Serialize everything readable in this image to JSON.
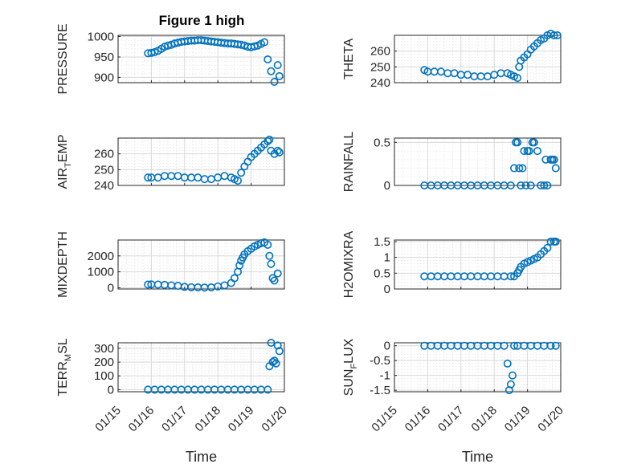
{
  "figure": {
    "title": "Figure 1 high",
    "marker_color": "#0072BD",
    "x_tick_labels": [
      "01/15",
      "01/16",
      "01/17",
      "01/18",
      "01/19",
      "01/20"
    ],
    "xlabel": "Time"
  },
  "chart_data": [
    {
      "type": "scatter",
      "title": "Figure 1 high",
      "ylabel": "PRESSURE",
      "xlim": [
        "01/15",
        "01/20"
      ],
      "ylim": [
        887,
        1003
      ],
      "yticks": [
        900,
        950,
        1000
      ],
      "ytick_labels": [
        "900",
        "950",
        "1000"
      ],
      "grid": true,
      "x_day": [
        15.9,
        16.0,
        16.1,
        16.2,
        16.3,
        16.4,
        16.5,
        16.6,
        16.7,
        16.8,
        16.9,
        17.0,
        17.1,
        17.2,
        17.3,
        17.4,
        17.5,
        17.6,
        17.7,
        17.8,
        17.9,
        18.0,
        18.1,
        18.2,
        18.3,
        18.4,
        18.5,
        18.6,
        18.7,
        18.8,
        18.9,
        19.0,
        19.1,
        19.2,
        19.3,
        19.4,
        19.5,
        19.6,
        19.7,
        19.8,
        19.85
      ],
      "y": [
        959,
        960,
        962,
        965,
        970,
        975,
        978,
        980,
        983,
        985,
        987,
        988,
        989,
        990,
        990,
        991,
        991,
        990,
        989,
        988,
        987,
        986,
        985,
        984,
        983,
        983,
        982,
        981,
        980,
        978,
        975,
        974,
        976,
        978,
        982,
        986,
        944,
        915,
        889,
        930,
        903
      ]
    },
    {
      "type": "scatter",
      "ylabel": "THETA",
      "xlim": [
        "01/15",
        "01/20"
      ],
      "ylim": [
        240,
        270
      ],
      "yticks": [
        240,
        250,
        260
      ],
      "ytick_labels": [
        "240",
        "250",
        "260"
      ],
      "grid": true,
      "x_day": [
        15.9,
        16.0,
        16.2,
        16.4,
        16.6,
        16.8,
        17.0,
        17.2,
        17.4,
        17.6,
        17.8,
        18.0,
        18.2,
        18.4,
        18.5,
        18.6,
        18.7,
        18.75,
        18.8,
        18.9,
        19.0,
        19.1,
        19.2,
        19.3,
        19.4,
        19.5,
        19.6,
        19.7,
        19.8,
        19.9
      ],
      "y": [
        248,
        247,
        247,
        247,
        246,
        246,
        245,
        245,
        244,
        244,
        244,
        245,
        246,
        246,
        245,
        244,
        243,
        250,
        254,
        256,
        258,
        261,
        263,
        265,
        267,
        268,
        270,
        271,
        270,
        270
      ]
    },
    {
      "type": "scatter",
      "ylabel": "AIR_TEMP",
      "xlim": [
        "01/15",
        "01/20"
      ],
      "ylim": [
        240,
        270
      ],
      "yticks": [
        240,
        250,
        260
      ],
      "ytick_labels": [
        "240",
        "250",
        "260"
      ],
      "grid": true,
      "x_day": [
        15.9,
        16.0,
        16.2,
        16.4,
        16.6,
        16.8,
        17.0,
        17.2,
        17.4,
        17.6,
        17.8,
        18.0,
        18.2,
        18.4,
        18.5,
        18.6,
        18.7,
        18.8,
        18.9,
        19.0,
        19.1,
        19.2,
        19.3,
        19.4,
        19.5,
        19.55,
        19.6,
        19.7,
        19.8,
        19.85
      ],
      "y": [
        245,
        245,
        245,
        246,
        246,
        246,
        245,
        245,
        245,
        244,
        244,
        245,
        246,
        245,
        244,
        243,
        248,
        252,
        255,
        258,
        260,
        262,
        264,
        266,
        268,
        269,
        262,
        260,
        262,
        261
      ]
    },
    {
      "type": "scatter",
      "ylabel": "RAINFALL",
      "xlim": [
        "01/15",
        "01/20"
      ],
      "ylim": [
        0,
        0.55
      ],
      "yticks": [
        0,
        0.5
      ],
      "ytick_labels": [
        "0",
        "0.5"
      ],
      "grid": true,
      "x_day": [
        15.9,
        16.1,
        16.3,
        16.5,
        16.7,
        16.9,
        17.1,
        17.3,
        17.5,
        17.7,
        17.9,
        18.1,
        18.3,
        18.5,
        18.6,
        18.65,
        18.7,
        18.75,
        18.8,
        18.85,
        18.9,
        18.95,
        19.0,
        19.05,
        19.1,
        19.15,
        19.2,
        19.3,
        19.4,
        19.5,
        19.55,
        19.6,
        19.7,
        19.75,
        19.8,
        19.85
      ],
      "y": [
        0,
        0,
        0,
        0,
        0,
        0,
        0,
        0,
        0,
        0,
        0,
        0,
        0,
        0,
        0.2,
        0.5,
        0.5,
        0.2,
        0,
        0.2,
        0.4,
        0,
        0.4,
        0.4,
        0,
        0.5,
        0.5,
        0.4,
        0,
        0,
        0.3,
        0,
        0.3,
        0.3,
        0.3,
        0.2
      ]
    },
    {
      "type": "scatter",
      "ylabel": "MIXDEPTH",
      "xlim": [
        "01/15",
        "01/20"
      ],
      "ylim": [
        -80,
        3000
      ],
      "yticks": [
        0,
        1000,
        2000
      ],
      "ytick_labels": [
        "0",
        "1000",
        "2000"
      ],
      "grid": true,
      "x_day": [
        15.9,
        16.0,
        16.2,
        16.4,
        16.6,
        16.8,
        17.0,
        17.2,
        17.4,
        17.6,
        17.8,
        18.0,
        18.2,
        18.4,
        18.5,
        18.6,
        18.65,
        18.7,
        18.75,
        18.8,
        18.9,
        19.0,
        19.1,
        19.2,
        19.3,
        19.4,
        19.5,
        19.55,
        19.6,
        19.65,
        19.7,
        19.8
      ],
      "y": [
        200,
        210,
        200,
        180,
        150,
        120,
        50,
        30,
        20,
        10,
        20,
        80,
        150,
        300,
        600,
        1000,
        1400,
        1700,
        1900,
        2100,
        2300,
        2450,
        2600,
        2700,
        2800,
        2850,
        2700,
        2000,
        1500,
        600,
        450,
        900
      ]
    },
    {
      "type": "scatter",
      "ylabel": "H2OMIXRA",
      "xlim": [
        "01/15",
        "01/20"
      ],
      "ylim": [
        0,
        1.55
      ],
      "yticks": [
        0,
        0.5,
        1,
        1.5
      ],
      "ytick_labels": [
        "0",
        "0.5",
        "1",
        "1.5"
      ],
      "grid": true,
      "x_day": [
        15.9,
        16.1,
        16.3,
        16.5,
        16.7,
        16.9,
        17.1,
        17.3,
        17.5,
        17.7,
        17.9,
        18.1,
        18.3,
        18.5,
        18.6,
        18.7,
        18.75,
        18.8,
        18.9,
        19.0,
        19.1,
        19.2,
        19.3,
        19.4,
        19.5,
        19.6,
        19.7,
        19.8,
        19.85
      ],
      "y": [
        0.4,
        0.4,
        0.4,
        0.4,
        0.4,
        0.4,
        0.4,
        0.4,
        0.4,
        0.4,
        0.4,
        0.4,
        0.4,
        0.4,
        0.4,
        0.5,
        0.6,
        0.7,
        0.8,
        0.85,
        0.9,
        0.95,
        1.0,
        1.1,
        1.2,
        1.3,
        1.5,
        1.5,
        1.5
      ]
    },
    {
      "type": "scatter",
      "ylabel": "TERR_MSL",
      "xlim": [
        "01/15",
        "01/20"
      ],
      "ylim": [
        -15,
        340
      ],
      "yticks": [
        0,
        100,
        200,
        300
      ],
      "ytick_labels": [
        "0",
        "100",
        "200",
        "300"
      ],
      "grid": true,
      "x_day": [
        15.9,
        16.1,
        16.3,
        16.5,
        16.7,
        16.9,
        17.1,
        17.3,
        17.5,
        17.7,
        17.9,
        18.1,
        18.3,
        18.5,
        18.7,
        18.9,
        19.1,
        19.3,
        19.5,
        19.55,
        19.6,
        19.65,
        19.7,
        19.75,
        19.8,
        19.85
      ],
      "y": [
        0,
        0,
        0,
        0,
        0,
        0,
        0,
        0,
        0,
        0,
        0,
        0,
        0,
        0,
        0,
        0,
        0,
        0,
        0,
        170,
        340,
        200,
        210,
        190,
        320,
        280
      ]
    },
    {
      "type": "scatter",
      "ylabel": "SUN_FLUX",
      "xlim": [
        "01/15",
        "01/20"
      ],
      "ylim": [
        -1.55,
        0.1
      ],
      "yticks": [
        -1.5,
        -1,
        -0.5,
        0
      ],
      "ytick_labels": [
        "-1.5",
        "-1",
        "-0.5",
        "0"
      ],
      "grid": true,
      "x_day": [
        15.9,
        16.1,
        16.3,
        16.5,
        16.7,
        16.9,
        17.1,
        17.3,
        17.5,
        17.7,
        17.9,
        18.1,
        18.3,
        18.4,
        18.45,
        18.5,
        18.55,
        18.6,
        18.7,
        18.9,
        19.1,
        19.3,
        19.5,
        19.7,
        19.85
      ],
      "y": [
        0,
        0,
        0,
        0,
        0,
        0,
        0,
        0,
        0,
        0,
        0,
        0,
        0,
        -0.6,
        -1.5,
        -1.3,
        -1.0,
        0,
        0,
        0,
        0,
        0,
        0,
        0,
        0
      ]
    }
  ]
}
